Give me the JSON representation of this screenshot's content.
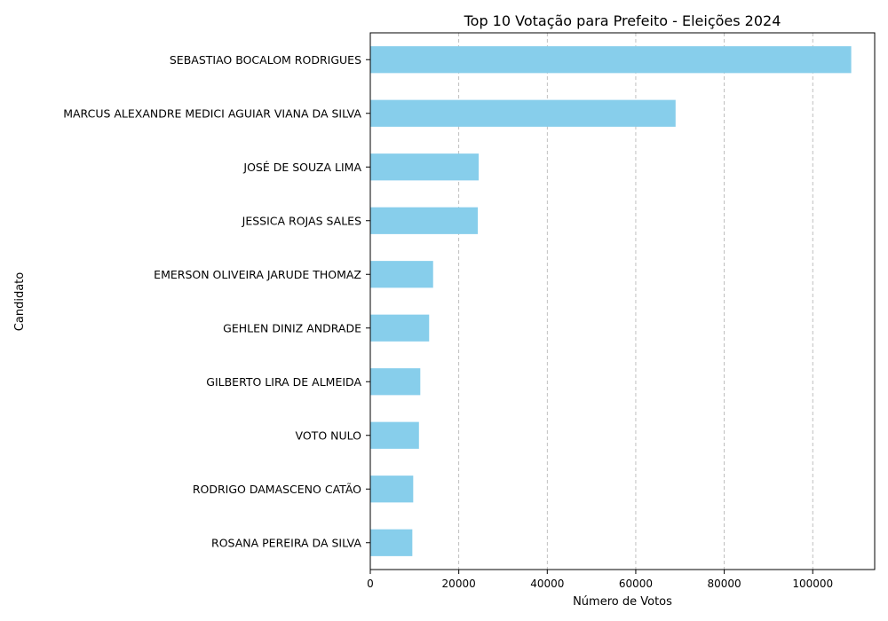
{
  "chart_data": {
    "type": "bar",
    "orientation": "horizontal",
    "title": "Top 10 Votação para Prefeito - Eleições 2024",
    "xlabel": "Número de Votos",
    "ylabel": "Candidato",
    "categories": [
      "SEBASTIAO BOCALOM RODRIGUES",
      "MARCUS ALEXANDRE MEDICI AGUIAR VIANA DA SILVA",
      "JOSÉ DE SOUZA LIMA",
      "JESSICA ROJAS SALES",
      "EMERSON OLIVEIRA JARUDE THOMAZ",
      "GEHLEN DINIZ ANDRADE",
      "GILBERTO LIRA DE ALMEIDA",
      "VOTO NULO",
      "RODRIGO DAMASCENO CATÃO",
      "ROSANA PEREIRA DA SILVA"
    ],
    "values": [
      108700,
      69000,
      24500,
      24300,
      14200,
      13300,
      11300,
      11000,
      9700,
      9500
    ],
    "xlim": [
      0,
      114000
    ],
    "xticks": [
      0,
      20000,
      40000,
      60000,
      80000,
      100000
    ],
    "xtick_labels": [
      "0",
      "20000",
      "40000",
      "60000",
      "80000",
      "100000"
    ],
    "grid": "x-dashed",
    "bar_color": "#87ceeb"
  }
}
